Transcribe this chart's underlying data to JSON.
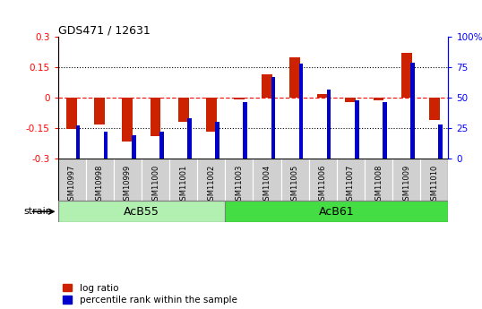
{
  "title": "GDS471 / 12631",
  "samples": [
    "GSM10997",
    "GSM10998",
    "GSM10999",
    "GSM11000",
    "GSM11001",
    "GSM11002",
    "GSM11003",
    "GSM11004",
    "GSM11005",
    "GSM11006",
    "GSM11007",
    "GSM11008",
    "GSM11009",
    "GSM11010"
  ],
  "log_ratio": [
    -0.155,
    -0.135,
    -0.215,
    -0.19,
    -0.12,
    -0.17,
    -0.01,
    0.115,
    0.2,
    0.02,
    -0.02,
    -0.015,
    0.22,
    -0.11
  ],
  "percentile_rank": [
    27,
    22,
    19,
    22,
    33,
    30,
    46,
    67,
    78,
    57,
    48,
    46,
    79,
    28
  ],
  "ylim_left": [
    -0.3,
    0.3
  ],
  "ylim_right": [
    0,
    100
  ],
  "yticks_left": [
    -0.3,
    -0.15,
    0,
    0.15,
    0.3
  ],
  "yticks_right": [
    0,
    25,
    50,
    75,
    100
  ],
  "ytick_labels_left": [
    "-0.3",
    "-0.15",
    "0",
    "0.15",
    "0.3"
  ],
  "ytick_labels_right": [
    "0",
    "25",
    "50",
    "75",
    "100%"
  ],
  "groups": [
    {
      "label": "AcB55",
      "start": 0,
      "end": 6,
      "color": "#b2f0b2"
    },
    {
      "label": "AcB61",
      "start": 6,
      "end": 14,
      "color": "#44dd44"
    }
  ],
  "strain_label": "strain",
  "log_ratio_color": "#cc2200",
  "percentile_color": "#0000cc",
  "bg_color": "#ffffff",
  "sample_box_color": "#d0d0d0"
}
